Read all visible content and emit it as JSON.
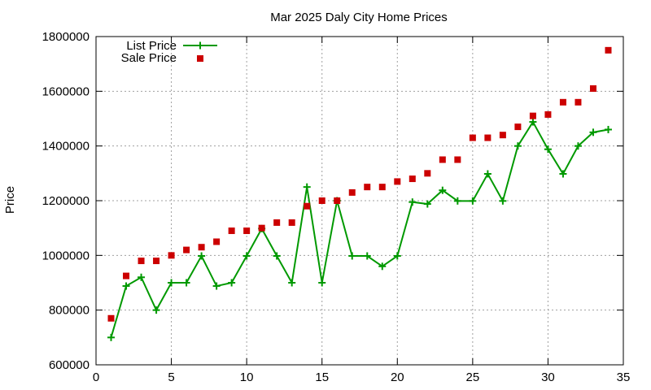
{
  "chart_data": {
    "type": "line",
    "title": "Mar 2025 Daly City Home Prices",
    "xlabel": "",
    "ylabel": "Price",
    "xlim": [
      0,
      35
    ],
    "ylim": [
      600000,
      1800000
    ],
    "x_ticks": [
      0,
      5,
      10,
      15,
      20,
      25,
      30,
      35
    ],
    "y_ticks": [
      600000,
      800000,
      1000000,
      1200000,
      1400000,
      1600000,
      1800000
    ],
    "grid": true,
    "legend_position": "top-left",
    "series": [
      {
        "name": "List Price",
        "style": "line-with-plus-markers",
        "color": "#009900",
        "x": [
          1,
          2,
          3,
          4,
          5,
          6,
          7,
          8,
          9,
          10,
          11,
          12,
          13,
          14,
          15,
          16,
          17,
          18,
          19,
          20,
          21,
          22,
          23,
          24,
          25,
          26,
          27,
          28,
          29,
          30,
          31,
          32,
          33,
          34
        ],
        "values": [
          700000,
          888000,
          920000,
          800000,
          900000,
          900000,
          998000,
          888000,
          900000,
          998000,
          1098000,
          998000,
          900000,
          1250000,
          900000,
          1200000,
          998000,
          998000,
          960000,
          998000,
          1195000,
          1188000,
          1238000,
          1199000,
          1199000,
          1298000,
          1199000,
          1400000,
          1488000,
          1388000,
          1298000,
          1400000,
          1450000,
          1460000
        ]
      },
      {
        "name": "Sale Price",
        "style": "square-markers",
        "color": "#cc0000",
        "x": [
          1,
          2,
          3,
          4,
          5,
          6,
          7,
          8,
          9,
          10,
          11,
          12,
          13,
          14,
          15,
          16,
          17,
          18,
          19,
          20,
          21,
          22,
          23,
          24,
          25,
          26,
          27,
          28,
          29,
          30,
          31,
          32,
          33,
          34
        ],
        "values": [
          770000,
          925000,
          980000,
          980000,
          1000000,
          1020000,
          1030000,
          1050000,
          1090000,
          1090000,
          1100000,
          1120000,
          1120000,
          1180000,
          1200000,
          1200000,
          1230000,
          1250000,
          1250000,
          1270000,
          1280000,
          1300000,
          1350000,
          1350000,
          1430000,
          1430000,
          1440000,
          1470000,
          1510000,
          1515000,
          1560000,
          1560000,
          1610000,
          1750000
        ]
      }
    ]
  }
}
